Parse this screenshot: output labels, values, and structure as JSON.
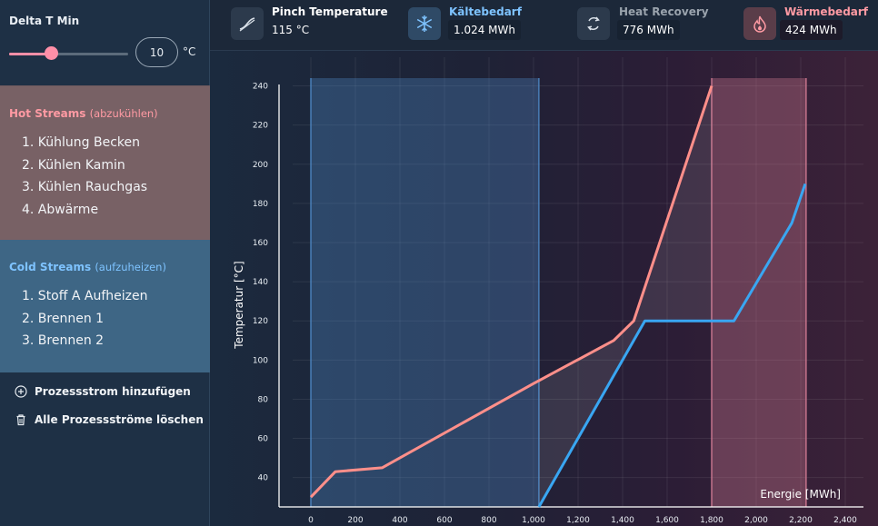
{
  "delta_t": {
    "label": "Delta T Min",
    "value": "10",
    "unit": "°C",
    "slider_fraction": 0.35
  },
  "hot_streams": {
    "title": "Hot Streams",
    "subtitle": "(abzukühlen)",
    "items": [
      "1. Kühlung Becken",
      "2. Kühlen Kamin",
      "3. Kühlen Rauchgas",
      "4. Abwärme"
    ]
  },
  "cold_streams": {
    "title": "Cold Streams",
    "subtitle": "(aufzuheizen)",
    "items": [
      "1. Stoff A Aufheizen",
      "2. Brennen 1",
      "3. Brennen 2"
    ]
  },
  "actions": {
    "add": "Prozessstrom hinzufügen",
    "delete": "Alle Prozessströme löschen"
  },
  "kpis": [
    {
      "title": "Pinch Temperature",
      "value": "115 °C",
      "icon": "pinch-curve-icon",
      "title_color": "#ffffff"
    },
    {
      "title": "Kältebedarf",
      "value": "1.024 MWh",
      "icon": "snowflake-icon",
      "title_color": "#7ec3ff"
    },
    {
      "title": "Heat Recovery",
      "value": "776 MWh",
      "icon": "recycle-icon",
      "title_color": "#9aa3ad"
    },
    {
      "title": "Wärmebedarf",
      "value": "424 MWh",
      "icon": "flame-icon",
      "title_color": "#ff9aa3"
    }
  ],
  "chart_data": {
    "type": "line",
    "xlabel": "Energie [MWh]",
    "ylabel": "Temperatur [°C]",
    "xlim": [
      0,
      2400
    ],
    "ylim": [
      25,
      250
    ],
    "x_ticks": [
      0,
      200,
      400,
      600,
      800,
      1000,
      1200,
      1400,
      1600,
      1800,
      2000,
      2200,
      2400
    ],
    "x_tick_labels": [
      "0",
      "200",
      "400",
      "600",
      "800",
      "1,000",
      "1,200",
      "1,400",
      "1,600",
      "1,800",
      "2,000",
      "2,200",
      "2,400"
    ],
    "y_ticks": [
      40,
      60,
      80,
      100,
      120,
      140,
      160,
      180,
      200,
      220,
      240
    ],
    "grid": true,
    "series": [
      {
        "color": "#ff8f8a",
        "x": [
          0,
          110,
          320,
          1000,
          1360,
          1450,
          1800
        ],
        "y": [
          30,
          43,
          45,
          88,
          110,
          120,
          240
        ]
      },
      {
        "color": "#39a6f2",
        "x": [
          1024,
          1500,
          1900,
          2160,
          2220
        ],
        "y": [
          25,
          120,
          120,
          170,
          190
        ]
      }
    ],
    "regions": [
      {
        "name": "Kältebedarf",
        "x_start": 0,
        "x_end": 1024,
        "color": "#4d86c2"
      },
      {
        "name": "Wärmebedarf",
        "x_start": 1800,
        "x_end": 2224,
        "color": "#d07a92"
      }
    ]
  }
}
